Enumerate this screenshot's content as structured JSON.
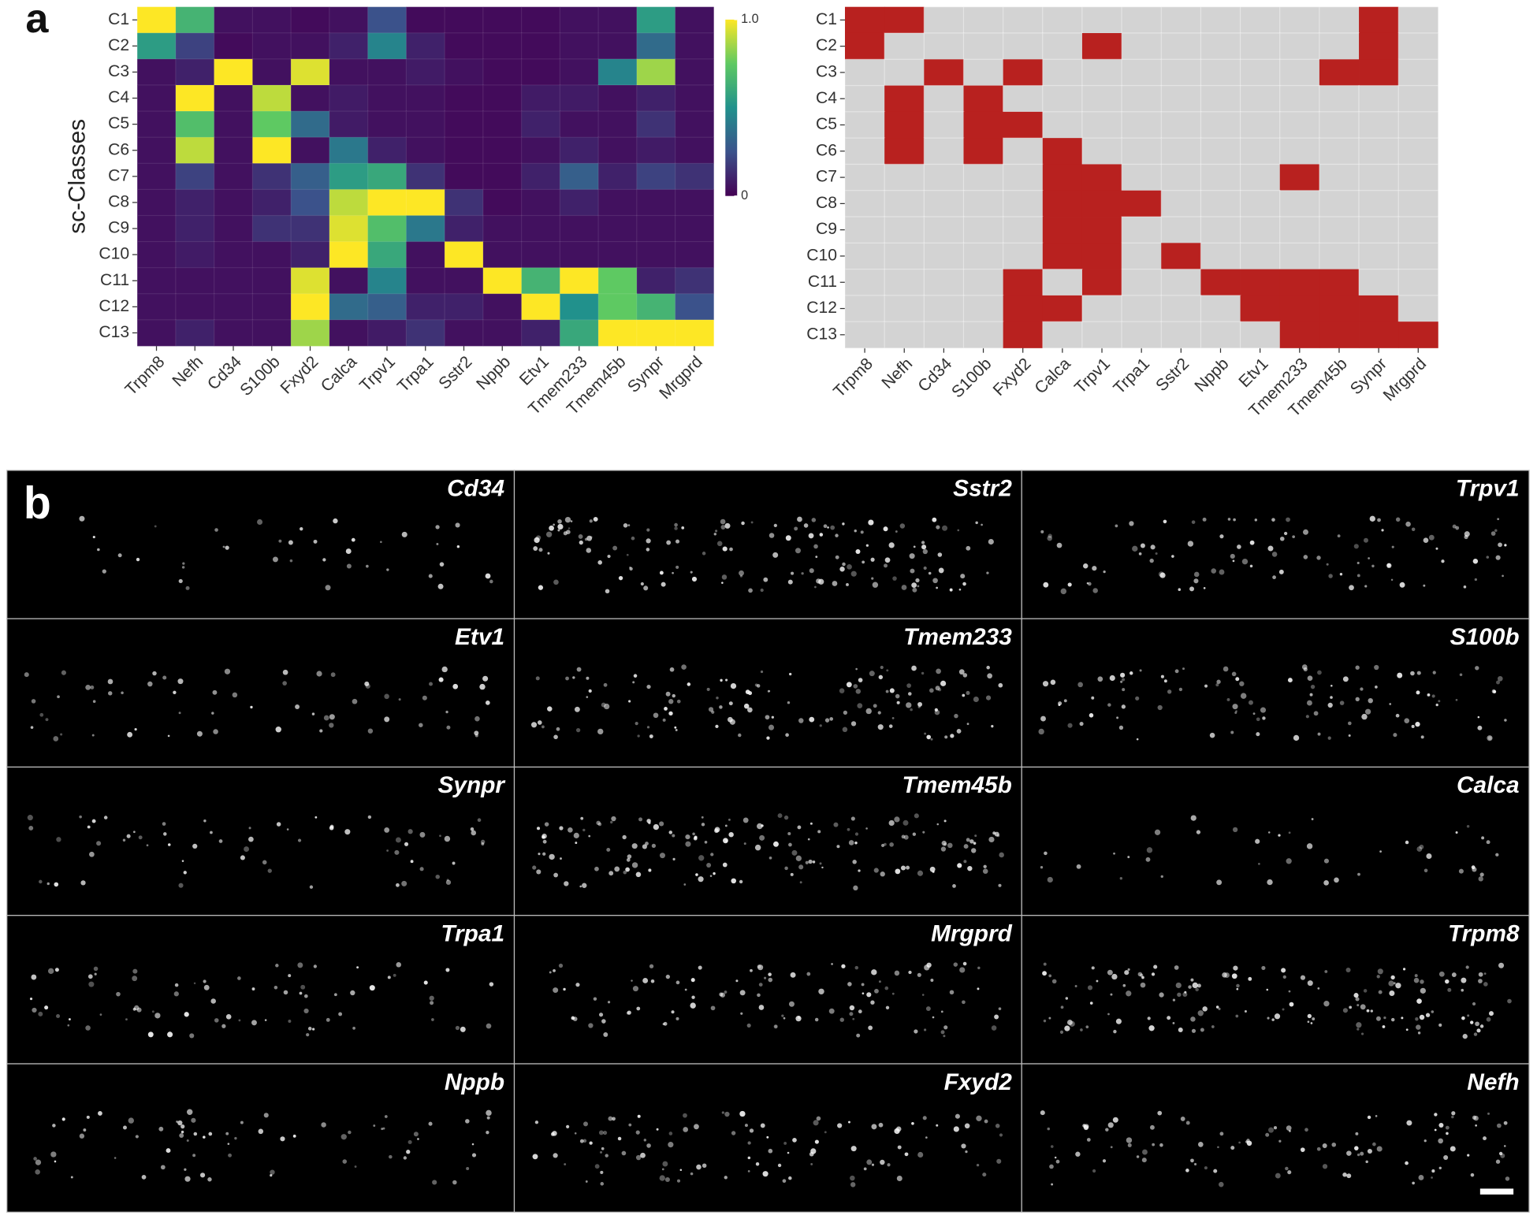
{
  "panel_labels": [
    "a",
    "b"
  ],
  "chart_data": [
    {
      "type": "heatmap",
      "ylabel": "sc-Classes",
      "categories": [
        "Trpm8",
        "Nefh",
        "Cd34",
        "S100b",
        "Fxyd2",
        "Calca",
        "Trpv1",
        "Trpa1",
        "Sstr2",
        "Nppb",
        "Etv1",
        "Tmem233",
        "Tmem45b",
        "Synpr",
        "Mrgprd"
      ],
      "rows": [
        "C1",
        "C2",
        "C3",
        "C4",
        "C5",
        "C6",
        "C7",
        "C8",
        "C9",
        "C10",
        "C11",
        "C12",
        "C13"
      ],
      "values": [
        [
          1.0,
          0.65,
          0.05,
          0.05,
          0.03,
          0.05,
          0.25,
          0.03,
          0.03,
          0.03,
          0.03,
          0.05,
          0.05,
          0.55,
          0.05
        ],
        [
          0.55,
          0.2,
          0.03,
          0.05,
          0.05,
          0.1,
          0.45,
          0.1,
          0.03,
          0.03,
          0.03,
          0.05,
          0.05,
          0.35,
          0.05
        ],
        [
          0.05,
          0.1,
          1.0,
          0.05,
          0.95,
          0.05,
          0.05,
          0.08,
          0.05,
          0.03,
          0.03,
          0.05,
          0.45,
          0.85,
          0.05
        ],
        [
          0.05,
          1.0,
          0.05,
          0.9,
          0.05,
          0.08,
          0.05,
          0.05,
          0.03,
          0.03,
          0.08,
          0.08,
          0.05,
          0.1,
          0.05
        ],
        [
          0.05,
          0.7,
          0.05,
          0.75,
          0.35,
          0.08,
          0.05,
          0.05,
          0.03,
          0.03,
          0.1,
          0.05,
          0.05,
          0.15,
          0.05
        ],
        [
          0.05,
          0.9,
          0.05,
          1.0,
          0.05,
          0.4,
          0.1,
          0.05,
          0.03,
          0.03,
          0.05,
          0.1,
          0.05,
          0.08,
          0.05
        ],
        [
          0.05,
          0.2,
          0.05,
          0.15,
          0.3,
          0.55,
          0.6,
          0.15,
          0.03,
          0.03,
          0.1,
          0.3,
          0.1,
          0.2,
          0.15
        ],
        [
          0.05,
          0.1,
          0.05,
          0.1,
          0.25,
          0.9,
          1.0,
          1.0,
          0.15,
          0.03,
          0.05,
          0.1,
          0.05,
          0.05,
          0.05
        ],
        [
          0.05,
          0.1,
          0.05,
          0.15,
          0.15,
          0.95,
          0.7,
          0.4,
          0.1,
          0.05,
          0.05,
          0.05,
          0.05,
          0.05,
          0.05
        ],
        [
          0.05,
          0.08,
          0.05,
          0.05,
          0.1,
          1.0,
          0.6,
          0.05,
          1.0,
          0.05,
          0.05,
          0.05,
          0.05,
          0.05,
          0.05
        ],
        [
          0.05,
          0.05,
          0.05,
          0.05,
          0.95,
          0.05,
          0.45,
          0.05,
          0.05,
          1.0,
          0.65,
          1.0,
          0.75,
          0.1,
          0.15
        ],
        [
          0.05,
          0.05,
          0.05,
          0.05,
          1.0,
          0.35,
          0.3,
          0.1,
          0.1,
          0.05,
          1.0,
          0.5,
          0.75,
          0.65,
          0.25
        ],
        [
          0.05,
          0.1,
          0.05,
          0.05,
          0.85,
          0.05,
          0.08,
          0.15,
          0.05,
          0.05,
          0.1,
          0.6,
          1.0,
          1.0,
          1.0
        ]
      ],
      "colormap": [
        "#440154",
        "#3b528b",
        "#21918c",
        "#5ec962",
        "#fde725"
      ],
      "clim": [
        0,
        1
      ],
      "cticks": [
        0,
        {
          "value": 1,
          "label": "1.0"
        }
      ]
    },
    {
      "type": "binary-heatmap",
      "categories": [
        "Trpm8",
        "Nefh",
        "Cd34",
        "S100b",
        "Fxyd2",
        "Calca",
        "Trpv1",
        "Trpa1",
        "Sstr2",
        "Nppb",
        "Etv1",
        "Tmem233",
        "Tmem45b",
        "Synpr",
        "Mrgprd"
      ],
      "rows": [
        "C1",
        "C2",
        "C3",
        "C4",
        "C5",
        "C6",
        "C7",
        "C8",
        "C9",
        "C10",
        "C11",
        "C12",
        "C13"
      ],
      "values": [
        [
          1,
          1,
          0,
          0,
          0,
          0,
          0,
          0,
          0,
          0,
          0,
          0,
          0,
          1,
          0
        ],
        [
          1,
          0,
          0,
          0,
          0,
          0,
          1,
          0,
          0,
          0,
          0,
          0,
          0,
          1,
          0
        ],
        [
          0,
          0,
          1,
          0,
          1,
          0,
          0,
          0,
          0,
          0,
          0,
          0,
          1,
          1,
          0
        ],
        [
          0,
          1,
          0,
          1,
          0,
          0,
          0,
          0,
          0,
          0,
          0,
          0,
          0,
          0,
          0
        ],
        [
          0,
          1,
          0,
          1,
          1,
          0,
          0,
          0,
          0,
          0,
          0,
          0,
          0,
          0,
          0
        ],
        [
          0,
          1,
          0,
          1,
          0,
          1,
          0,
          0,
          0,
          0,
          0,
          0,
          0,
          0,
          0
        ],
        [
          0,
          0,
          0,
          0,
          0,
          1,
          1,
          0,
          0,
          0,
          0,
          1,
          0,
          0,
          0
        ],
        [
          0,
          0,
          0,
          0,
          0,
          1,
          1,
          1,
          0,
          0,
          0,
          0,
          0,
          0,
          0
        ],
        [
          0,
          0,
          0,
          0,
          0,
          1,
          1,
          0,
          0,
          0,
          0,
          0,
          0,
          0,
          0
        ],
        [
          0,
          0,
          0,
          0,
          0,
          1,
          1,
          0,
          1,
          0,
          0,
          0,
          0,
          0,
          0
        ],
        [
          0,
          0,
          0,
          0,
          1,
          0,
          1,
          0,
          0,
          1,
          1,
          1,
          1,
          0,
          0
        ],
        [
          0,
          0,
          0,
          0,
          1,
          1,
          0,
          0,
          0,
          0,
          1,
          1,
          1,
          1,
          0
        ],
        [
          0,
          0,
          0,
          0,
          1,
          0,
          0,
          0,
          0,
          0,
          0,
          1,
          1,
          1,
          1
        ]
      ],
      "on_color": "#b8211f",
      "off_color": "#d3d3d3"
    }
  ],
  "images": {
    "rows": [
      [
        "Cd34",
        "Sstr2",
        "Trpv1"
      ],
      [
        "Etv1",
        "Tmem233",
        "S100b"
      ],
      [
        "Synpr",
        "Tmem45b",
        "Calca"
      ],
      [
        "Trpa1",
        "Mrgprd",
        "Trpm8"
      ],
      [
        "Nppb",
        "Fxyd2",
        "Nefh"
      ]
    ]
  }
}
